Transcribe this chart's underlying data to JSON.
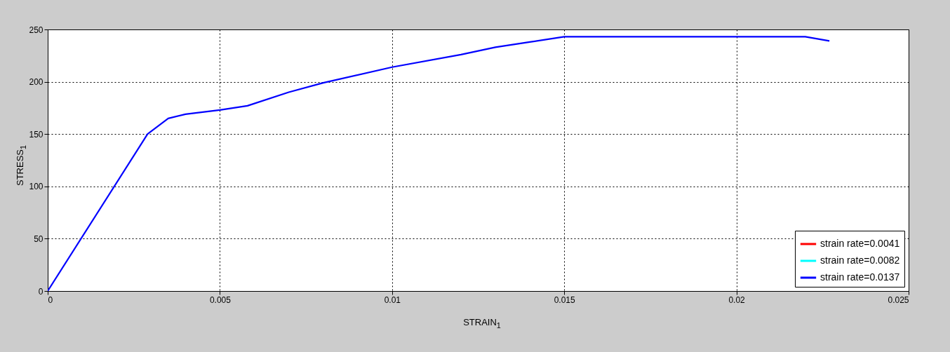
{
  "chart_data": {
    "type": "line",
    "xlabel": "STRAIN$_{1}$",
    "ylabel": "STRESS$_{1}$",
    "x": [
      0,
      0.0029,
      0.0035,
      0.004,
      0.005,
      0.0058,
      0.007,
      0.008,
      0.01,
      0.012,
      0.013,
      0.014,
      0.015,
      0.022,
      0.0227
    ],
    "series": [
      {
        "name": "strain rate=0.0041",
        "color": "#ff0000",
        "values": [
          null,
          null,
          null,
          null,
          null,
          null,
          null,
          null,
          null,
          null,
          null,
          null,
          null,
          null,
          null
        ]
      },
      {
        "name": "strain rate=0.0082",
        "color": "#00ffff",
        "values": [
          null,
          null,
          null,
          null,
          null,
          null,
          null,
          null,
          null,
          null,
          null,
          null,
          null,
          null,
          null
        ]
      },
      {
        "name": "strain rate=0.0137",
        "color": "#0000ff",
        "values": [
          0,
          150,
          165,
          169,
          173,
          177,
          190,
          199,
          214,
          226,
          233,
          238,
          243,
          243,
          239
        ]
      }
    ],
    "xlim": [
      0,
      0.025
    ],
    "xticks": [
      0,
      0.005,
      0.01,
      0.015,
      0.02,
      0.025
    ],
    "ylim": [
      0,
      250
    ],
    "yticks": [
      0,
      50,
      100,
      150,
      200,
      250
    ],
    "grid": true,
    "legend": "bottom right",
    "line_style": "solid"
  }
}
